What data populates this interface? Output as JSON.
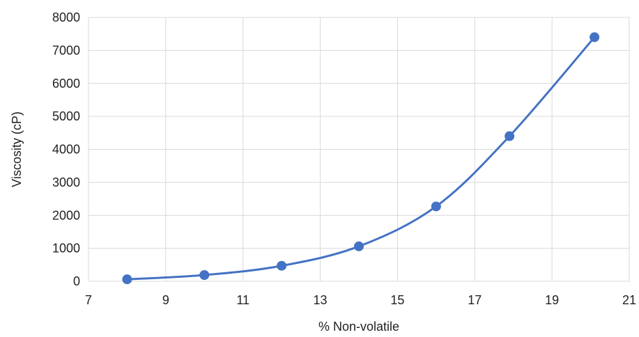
{
  "chart_data": {
    "type": "scatter",
    "style": "smooth-line-with-markers",
    "title": "",
    "xlabel": "% Non-volatile",
    "ylabel": "Viscosity (cP)",
    "xlim": [
      7,
      21
    ],
    "ylim": [
      0,
      8000
    ],
    "xticks": [
      7,
      9,
      11,
      13,
      15,
      17,
      19,
      21
    ],
    "yticks": [
      0,
      1000,
      2000,
      3000,
      4000,
      5000,
      6000,
      7000,
      8000
    ],
    "grid": true,
    "legend": "none",
    "colors": {
      "series": "#4472C4",
      "grid": "#d9d9d9",
      "text": "#222222"
    },
    "series": [
      {
        "x": [
          8,
          10,
          12,
          14,
          16,
          17.9,
          20.1
        ],
        "y": [
          60,
          190,
          470,
          1060,
          2270,
          4400,
          7400
        ]
      }
    ]
  }
}
